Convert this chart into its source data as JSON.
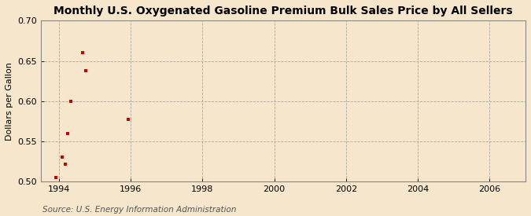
{
  "title": "Monthly U.S. Oxygenated Gasoline Premium Bulk Sales Price by All Sellers",
  "ylabel": "Dollars per Gallon",
  "source": "Source: U.S. Energy Information Administration",
  "background_color": "#f5e6cc",
  "plot_background_color": "#f5e6cc",
  "grid_color": "#999999",
  "point_color": "#cc0000",
  "x_data": [
    1993.92,
    1994.08,
    1994.17,
    1994.25,
    1994.33,
    1994.67,
    1994.75,
    1995.92
  ],
  "y_data": [
    0.505,
    0.53,
    0.522,
    0.56,
    0.6,
    0.66,
    0.638,
    0.577
  ],
  "xlim": [
    1993.5,
    2007.0
  ],
  "ylim": [
    0.5,
    0.7
  ],
  "xticks": [
    1994,
    1996,
    1998,
    2000,
    2002,
    2004,
    2006
  ],
  "yticks": [
    0.5,
    0.55,
    0.6,
    0.65,
    0.7
  ],
  "title_fontsize": 10,
  "label_fontsize": 8,
  "tick_fontsize": 8,
  "source_fontsize": 7.5,
  "marker_size": 3.5
}
